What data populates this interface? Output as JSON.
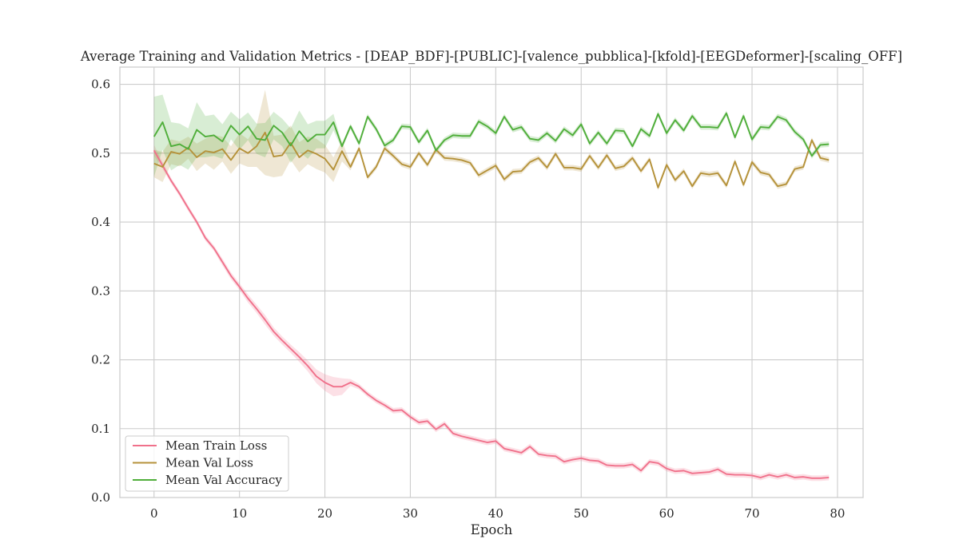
{
  "chart_data": {
    "type": "line",
    "title": "Average Training and Validation Metrics - [DEAP_BDF]-[PUBLIC]-[valence_pubblica]-[kfold]-[EEGDeformer]-[scaling_OFF]",
    "xlabel": "Epoch",
    "ylabel": "",
    "xlim": [
      -4,
      83
    ],
    "ylim": [
      0.0,
      0.625
    ],
    "xticks": [
      0,
      10,
      20,
      30,
      40,
      50,
      60,
      70,
      80
    ],
    "yticks": [
      0.0,
      0.1,
      0.2,
      0.3,
      0.4,
      0.5,
      0.6
    ],
    "grid": true,
    "legend_position": "lower-left",
    "x": [
      0,
      1,
      2,
      3,
      4,
      5,
      6,
      7,
      8,
      9,
      10,
      11,
      12,
      13,
      14,
      15,
      16,
      17,
      18,
      19,
      20,
      21,
      22,
      23,
      24,
      25,
      26,
      27,
      28,
      29,
      30,
      31,
      32,
      33,
      34,
      35,
      36,
      37,
      38,
      39,
      40,
      41,
      42,
      43,
      44,
      45,
      46,
      47,
      48,
      49,
      50,
      51,
      52,
      53,
      54,
      55,
      56,
      57,
      58,
      59,
      60,
      61,
      62,
      63,
      64,
      65,
      66,
      67,
      68,
      69,
      70,
      71,
      72,
      73,
      74,
      75,
      76,
      77,
      78,
      79
    ],
    "series": [
      {
        "name": "Mean Train Loss",
        "color": "#f0718b",
        "values": [
          0.504,
          0.482,
          0.46,
          0.441,
          0.42,
          0.4,
          0.377,
          0.362,
          0.342,
          0.322,
          0.306,
          0.289,
          0.274,
          0.258,
          0.241,
          0.228,
          0.216,
          0.204,
          0.191,
          0.176,
          0.167,
          0.161,
          0.161,
          0.167,
          0.161,
          0.15,
          0.141,
          0.134,
          0.126,
          0.127,
          0.117,
          0.109,
          0.111,
          0.099,
          0.107,
          0.093,
          0.089,
          0.086,
          0.083,
          0.08,
          0.082,
          0.071,
          0.068,
          0.065,
          0.074,
          0.063,
          0.061,
          0.06,
          0.052,
          0.055,
          0.057,
          0.054,
          0.053,
          0.047,
          0.046,
          0.046,
          0.048,
          0.039,
          0.052,
          0.05,
          0.042,
          0.038,
          0.039,
          0.035,
          0.036,
          0.037,
          0.041,
          0.034,
          0.033,
          0.033,
          0.032,
          0.029,
          0.033,
          0.03,
          0.033,
          0.029,
          0.03,
          0.028,
          0.028,
          0.029
        ],
        "band": [
          0.008,
          0.005,
          0.004,
          0.004,
          0.004,
          0.004,
          0.004,
          0.004,
          0.005,
          0.005,
          0.005,
          0.006,
          0.006,
          0.007,
          0.006,
          0.006,
          0.006,
          0.007,
          0.008,
          0.01,
          0.012,
          0.014,
          0.012,
          0.005,
          0.004,
          0.004,
          0.004,
          0.004,
          0.004,
          0.004,
          0.004,
          0.004,
          0.004,
          0.004,
          0.004,
          0.004,
          0.004,
          0.004,
          0.004,
          0.004,
          0.004,
          0.004,
          0.004,
          0.004,
          0.004,
          0.004,
          0.004,
          0.004,
          0.004,
          0.004,
          0.004,
          0.004,
          0.004,
          0.004,
          0.004,
          0.004,
          0.004,
          0.004,
          0.004,
          0.004,
          0.004,
          0.004,
          0.004,
          0.004,
          0.004,
          0.004,
          0.004,
          0.004,
          0.004,
          0.004,
          0.004,
          0.004,
          0.004,
          0.004,
          0.004,
          0.004,
          0.004,
          0.004,
          0.004,
          0.004
        ]
      },
      {
        "name": "Mean Val Loss",
        "color": "#b5923a",
        "values": [
          0.485,
          0.48,
          0.502,
          0.499,
          0.508,
          0.494,
          0.503,
          0.501,
          0.506,
          0.49,
          0.507,
          0.5,
          0.51,
          0.53,
          0.495,
          0.497,
          0.515,
          0.494,
          0.504,
          0.499,
          0.492,
          0.476,
          0.503,
          0.48,
          0.507,
          0.465,
          0.48,
          0.507,
          0.496,
          0.484,
          0.48,
          0.5,
          0.483,
          0.505,
          0.493,
          0.492,
          0.49,
          0.486,
          0.468,
          0.475,
          0.482,
          0.462,
          0.473,
          0.474,
          0.487,
          0.493,
          0.479,
          0.499,
          0.479,
          0.479,
          0.477,
          0.496,
          0.479,
          0.497,
          0.478,
          0.481,
          0.493,
          0.474,
          0.491,
          0.45,
          0.483,
          0.461,
          0.474,
          0.452,
          0.471,
          0.469,
          0.471,
          0.453,
          0.488,
          0.454,
          0.487,
          0.472,
          0.469,
          0.452,
          0.455,
          0.477,
          0.48,
          0.519,
          0.493,
          0.49
        ],
        "band": [
          0.02,
          0.022,
          0.018,
          0.018,
          0.016,
          0.02,
          0.018,
          0.025,
          0.018,
          0.02,
          0.022,
          0.02,
          0.03,
          0.062,
          0.03,
          0.03,
          0.025,
          0.022,
          0.02,
          0.022,
          0.02,
          0.018,
          0.015,
          0.005,
          0.004,
          0.004,
          0.004,
          0.004,
          0.004,
          0.004,
          0.004,
          0.004,
          0.004,
          0.004,
          0.004,
          0.004,
          0.004,
          0.004,
          0.004,
          0.004,
          0.004,
          0.004,
          0.004,
          0.004,
          0.004,
          0.004,
          0.004,
          0.004,
          0.004,
          0.004,
          0.004,
          0.004,
          0.004,
          0.004,
          0.004,
          0.004,
          0.004,
          0.004,
          0.004,
          0.004,
          0.004,
          0.004,
          0.004,
          0.004,
          0.004,
          0.004,
          0.004,
          0.004,
          0.004,
          0.004,
          0.004,
          0.004,
          0.004,
          0.004,
          0.004,
          0.004,
          0.004,
          0.004,
          0.004,
          0.004
        ]
      },
      {
        "name": "Mean Val Accuracy",
        "color": "#4fae3a",
        "values": [
          0.524,
          0.545,
          0.51,
          0.513,
          0.506,
          0.534,
          0.524,
          0.526,
          0.517,
          0.54,
          0.527,
          0.539,
          0.521,
          0.519,
          0.54,
          0.53,
          0.511,
          0.532,
          0.517,
          0.527,
          0.527,
          0.545,
          0.51,
          0.539,
          0.514,
          0.553,
          0.535,
          0.511,
          0.519,
          0.539,
          0.538,
          0.516,
          0.533,
          0.504,
          0.519,
          0.526,
          0.525,
          0.525,
          0.546,
          0.539,
          0.529,
          0.553,
          0.534,
          0.538,
          0.521,
          0.519,
          0.529,
          0.518,
          0.535,
          0.526,
          0.542,
          0.514,
          0.53,
          0.514,
          0.533,
          0.532,
          0.51,
          0.535,
          0.525,
          0.557,
          0.529,
          0.548,
          0.533,
          0.554,
          0.538,
          0.538,
          0.537,
          0.558,
          0.523,
          0.554,
          0.52,
          0.538,
          0.537,
          0.553,
          0.548,
          0.531,
          0.52,
          0.496,
          0.512,
          0.513
        ],
        "band": [
          0.058,
          0.04,
          0.035,
          0.03,
          0.03,
          0.04,
          0.03,
          0.03,
          0.025,
          0.02,
          0.022,
          0.02,
          0.022,
          0.025,
          0.02,
          0.02,
          0.025,
          0.03,
          0.025,
          0.02,
          0.02,
          0.012,
          0.004,
          0.004,
          0.004,
          0.004,
          0.004,
          0.004,
          0.004,
          0.004,
          0.004,
          0.004,
          0.004,
          0.004,
          0.004,
          0.004,
          0.004,
          0.004,
          0.004,
          0.004,
          0.004,
          0.004,
          0.004,
          0.004,
          0.004,
          0.004,
          0.004,
          0.004,
          0.004,
          0.004,
          0.004,
          0.004,
          0.004,
          0.004,
          0.004,
          0.004,
          0.004,
          0.004,
          0.004,
          0.004,
          0.004,
          0.004,
          0.004,
          0.004,
          0.004,
          0.004,
          0.004,
          0.004,
          0.004,
          0.004,
          0.004,
          0.004,
          0.004,
          0.004,
          0.004,
          0.004,
          0.004,
          0.004,
          0.004,
          0.004
        ]
      }
    ]
  }
}
